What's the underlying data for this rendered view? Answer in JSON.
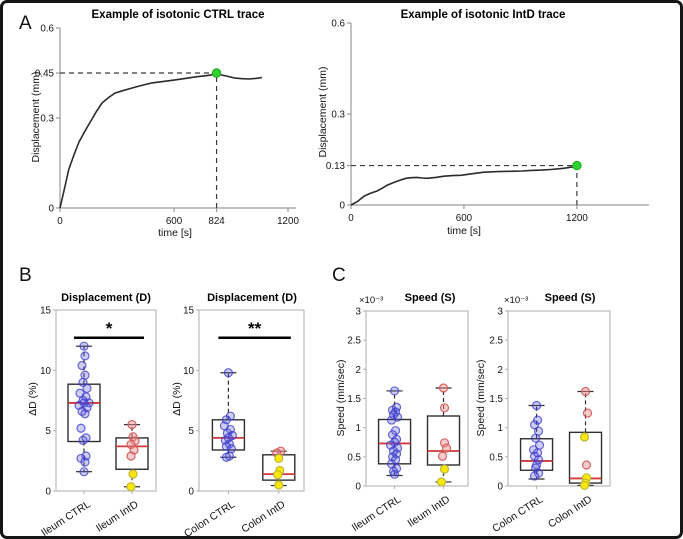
{
  "figure": {
    "panel_labels": {
      "a": "A",
      "b": "B",
      "c": "C"
    }
  },
  "colors": {
    "trace": "#2b2b2b",
    "peak_marker": "#2fd12f",
    "peak_marker_edge": "#17a817",
    "axis": "#9a9a9a",
    "box_frame": "#b5b5b5",
    "box_edge": "#2f2f2f",
    "median": "#cf3a3a",
    "dashed_guide": "#3a3a3a",
    "blue_fill": "#5a5ae0",
    "blue_edge": "#3838c8",
    "pink_fill": "#ef8d8d",
    "pink_edge": "#d15555",
    "yellow_fill": "#ffe60a",
    "yellow_edge": "#b9b93a",
    "sig_bar": "#000000"
  },
  "chart_data": [
    {
      "id": "a1",
      "type": "line",
      "panel": "A",
      "title": "Example of isotonic CTRL trace",
      "xlabel": "time [s]",
      "ylabel": "Displacement (mm)",
      "ylim": [
        0,
        0.6
      ],
      "xlim_draw": [
        0,
        1242
      ],
      "xticks": [
        0,
        600,
        824,
        1200
      ],
      "yticks": [
        0,
        0.3,
        0.45,
        0.6
      ],
      "x": [
        0,
        20,
        47,
        75,
        100,
        130,
        153,
        190,
        221,
        255,
        289,
        330,
        363,
        420,
        484,
        545,
        605,
        660,
        711,
        770,
        824,
        875,
        921,
        960,
        995,
        1030,
        1063
      ],
      "y": [
        0,
        0.055,
        0.13,
        0.18,
        0.22,
        0.255,
        0.28,
        0.32,
        0.35,
        0.368,
        0.383,
        0.391,
        0.397,
        0.407,
        0.417,
        0.422,
        0.427,
        0.432,
        0.437,
        0.441,
        0.447,
        0.44,
        0.433,
        0.431,
        0.43,
        0.432,
        0.435
      ],
      "peak": {
        "x": 824,
        "y": 0.45
      }
    },
    {
      "id": "a2",
      "type": "line",
      "panel": "A",
      "title": "Example of isotonic IntD trace",
      "xlabel": "time [s]",
      "ylabel": "Displacement (mm)",
      "ylim": [
        0,
        0.6
      ],
      "xlim_draw": [
        0,
        1583
      ],
      "xticks": [
        0,
        600,
        1200
      ],
      "yticks": [
        0,
        0.13,
        0.3,
        0.6
      ],
      "x": [
        0,
        35,
        69,
        100,
        138,
        165,
        191,
        230,
        262,
        292,
        320,
        350,
        380,
        404,
        450,
        494,
        540,
        584,
        640,
        706,
        780,
        850,
        910,
        956,
        1010,
        1062,
        1130,
        1200
      ],
      "y": [
        0,
        0.012,
        0.029,
        0.038,
        0.046,
        0.055,
        0.065,
        0.075,
        0.082,
        0.088,
        0.09,
        0.091,
        0.089,
        0.088,
        0.091,
        0.095,
        0.097,
        0.098,
        0.103,
        0.108,
        0.11,
        0.111,
        0.112,
        0.114,
        0.115,
        0.117,
        0.121,
        0.128
      ],
      "peak": {
        "x": 1200,
        "y": 0.13
      }
    },
    {
      "id": "b1",
      "type": "box",
      "panel": "B",
      "title": "Displacement (D)",
      "ylabel": "ΔD (%)",
      "ylim": [
        0,
        15
      ],
      "yticks": [
        0,
        5,
        10,
        15
      ],
      "significance": "*",
      "sig_y": 12.7,
      "groups": [
        {
          "label": "Ileum CTRL",
          "whisker_low": 1.6,
          "q1": 4.1,
          "median": 7.3,
          "q3": 8.85,
          "whisker_high": 12.0,
          "points": [
            [
              12.0,
              0,
              "b"
            ],
            [
              11.2,
              1,
              "b"
            ],
            [
              10.4,
              -2,
              "b"
            ],
            [
              9.6,
              1,
              "b"
            ],
            [
              9.0,
              -1,
              "b"
            ],
            [
              8.5,
              3,
              "b"
            ],
            [
              8.1,
              -4,
              "b"
            ],
            [
              7.8,
              2,
              "b"
            ],
            [
              7.5,
              -1,
              "b"
            ],
            [
              7.3,
              5,
              "b"
            ],
            [
              7.3,
              0,
              "b"
            ],
            [
              7.1,
              -5,
              "b"
            ],
            [
              6.9,
              3,
              "b"
            ],
            [
              6.6,
              -2,
              "b"
            ],
            [
              6.4,
              1,
              "b"
            ],
            [
              5.2,
              -3,
              "b"
            ],
            [
              4.4,
              2,
              "b"
            ],
            [
              4.2,
              -1,
              "b"
            ],
            [
              2.9,
              2,
              "b"
            ],
            [
              2.7,
              -3,
              "b"
            ],
            [
              2.4,
              1,
              "b"
            ],
            [
              1.6,
              0,
              "b"
            ]
          ]
        },
        {
          "label": "Ileum IntD",
          "whisker_low": 0.35,
          "q1": 1.8,
          "median": 3.7,
          "q3": 4.4,
          "whisker_high": 5.5,
          "points": [
            [
              5.5,
              0,
              "p"
            ],
            [
              4.5,
              1,
              "p"
            ],
            [
              4.15,
              3,
              "p"
            ],
            [
              3.85,
              -1,
              "p"
            ],
            [
              3.4,
              2,
              "p"
            ],
            [
              2.9,
              -1,
              "p"
            ],
            [
              1.4,
              1,
              "y"
            ],
            [
              0.35,
              -1,
              "y"
            ]
          ]
        }
      ]
    },
    {
      "id": "b2",
      "type": "box",
      "panel": "B",
      "title": "Displacement (D)",
      "ylabel": "ΔD (%)",
      "ylim": [
        0,
        15
      ],
      "yticks": [
        0,
        5,
        10,
        15
      ],
      "significance": "**",
      "sig_y": 12.7,
      "groups": [
        {
          "label": "Colon CTRL",
          "whisker_low": 2.8,
          "q1": 3.4,
          "median": 4.4,
          "q3": 5.9,
          "whisker_high": 9.8,
          "points": [
            [
              9.8,
              0,
              "b"
            ],
            [
              6.2,
              2,
              "b"
            ],
            [
              5.9,
              -2,
              "b"
            ],
            [
              5.4,
              -4,
              "b"
            ],
            [
              5.1,
              2,
              "b"
            ],
            [
              4.8,
              -1,
              "b"
            ],
            [
              4.6,
              4,
              "b"
            ],
            [
              4.4,
              0,
              "b"
            ],
            [
              4.2,
              -3,
              "b"
            ],
            [
              3.9,
              1,
              "b"
            ],
            [
              3.7,
              -2,
              "b"
            ],
            [
              3.5,
              3,
              "b"
            ],
            [
              2.9,
              1,
              "b"
            ],
            [
              2.8,
              -2,
              "b"
            ]
          ]
        },
        {
          "label": "Colon IntD",
          "whisker_low": 0.45,
          "q1": 0.9,
          "median": 1.4,
          "q3": 3.0,
          "whisker_high": 3.3,
          "points": [
            [
              3.3,
              2,
              "p"
            ],
            [
              3.15,
              -2,
              "p"
            ],
            [
              2.7,
              0,
              "y"
            ],
            [
              1.7,
              1,
              "y"
            ],
            [
              1.35,
              -1,
              "y"
            ],
            [
              0.5,
              0,
              "y"
            ]
          ]
        }
      ]
    },
    {
      "id": "c1",
      "type": "box",
      "panel": "C",
      "title": "Speed (S)",
      "exponent": "×10⁻³",
      "ylabel": "Speed (mm/sec)",
      "ylim": [
        0,
        3
      ],
      "yticks": [
        0,
        0.5,
        1,
        1.5,
        2,
        2.5,
        3
      ],
      "groups": [
        {
          "label": "Ileum CTRL",
          "whisker_low": 0.18,
          "q1": 0.38,
          "median": 0.73,
          "q3": 1.14,
          "whisker_high": 1.63,
          "points": [
            [
              1.63,
              0,
              "b"
            ],
            [
              1.35,
              2,
              "b"
            ],
            [
              1.3,
              -2,
              "b"
            ],
            [
              1.27,
              1,
              "b"
            ],
            [
              1.22,
              -1,
              "b"
            ],
            [
              1.18,
              3,
              "b"
            ],
            [
              1.13,
              -3,
              "b"
            ],
            [
              0.95,
              1,
              "b"
            ],
            [
              0.88,
              -2,
              "b"
            ],
            [
              0.8,
              2,
              "b"
            ],
            [
              0.75,
              0,
              "b"
            ],
            [
              0.7,
              -4,
              "b"
            ],
            [
              0.65,
              3,
              "b"
            ],
            [
              0.6,
              -1,
              "b"
            ],
            [
              0.55,
              2,
              "b"
            ],
            [
              0.5,
              -2,
              "b"
            ],
            [
              0.45,
              1,
              "b"
            ],
            [
              0.38,
              -3,
              "b"
            ],
            [
              0.3,
              2,
              "b"
            ],
            [
              0.25,
              -1,
              "b"
            ],
            [
              0.2,
              0,
              "b"
            ]
          ]
        },
        {
          "label": "Ileum IntD",
          "whisker_low": 0.07,
          "q1": 0.36,
          "median": 0.6,
          "q3": 1.2,
          "whisker_high": 1.68,
          "points": [
            [
              1.68,
              0,
              "p"
            ],
            [
              1.34,
              1,
              "p"
            ],
            [
              0.74,
              1,
              "p"
            ],
            [
              0.65,
              3,
              "p"
            ],
            [
              0.51,
              -1,
              "p"
            ],
            [
              0.29,
              1,
              "y"
            ],
            [
              0.07,
              -2,
              "y"
            ]
          ]
        }
      ]
    },
    {
      "id": "c2",
      "type": "box",
      "panel": "C",
      "title": "Speed (S)",
      "exponent": "×10⁻³",
      "ylabel": "Speed (mm/sec)",
      "ylim": [
        0,
        3
      ],
      "yticks": [
        0,
        0.5,
        1,
        1.5,
        2,
        2.5,
        3
      ],
      "groups": [
        {
          "label": "Colon CTRL",
          "whisker_low": 0.12,
          "q1": 0.27,
          "median": 0.43,
          "q3": 0.81,
          "whisker_high": 1.38,
          "points": [
            [
              1.38,
              0,
              "b"
            ],
            [
              1.13,
              1,
              "b"
            ],
            [
              1.05,
              -2,
              "b"
            ],
            [
              0.94,
              2,
              "b"
            ],
            [
              0.82,
              -1,
              "b"
            ],
            [
              0.7,
              3,
              "b"
            ],
            [
              0.62,
              -3,
              "b"
            ],
            [
              0.57,
              1,
              "b"
            ],
            [
              0.51,
              -2,
              "b"
            ],
            [
              0.45,
              2,
              "b"
            ],
            [
              0.36,
              0,
              "b"
            ],
            [
              0.31,
              -1,
              "b"
            ],
            [
              0.22,
              2,
              "b"
            ],
            [
              0.17,
              -2,
              "b"
            ]
          ]
        },
        {
          "label": "Colon IntD",
          "whisker_low": 0.01,
          "q1": 0.05,
          "median": 0.13,
          "q3": 0.92,
          "whisker_high": 1.62,
          "points": [
            [
              1.62,
              0,
              "p"
            ],
            [
              1.25,
              2,
              "p"
            ],
            [
              0.36,
              1,
              "p"
            ],
            [
              0.84,
              -1,
              "y"
            ],
            [
              0.14,
              1,
              "y"
            ],
            [
              0.05,
              0,
              "y"
            ],
            [
              0.01,
              -1,
              "y"
            ]
          ]
        }
      ]
    }
  ]
}
